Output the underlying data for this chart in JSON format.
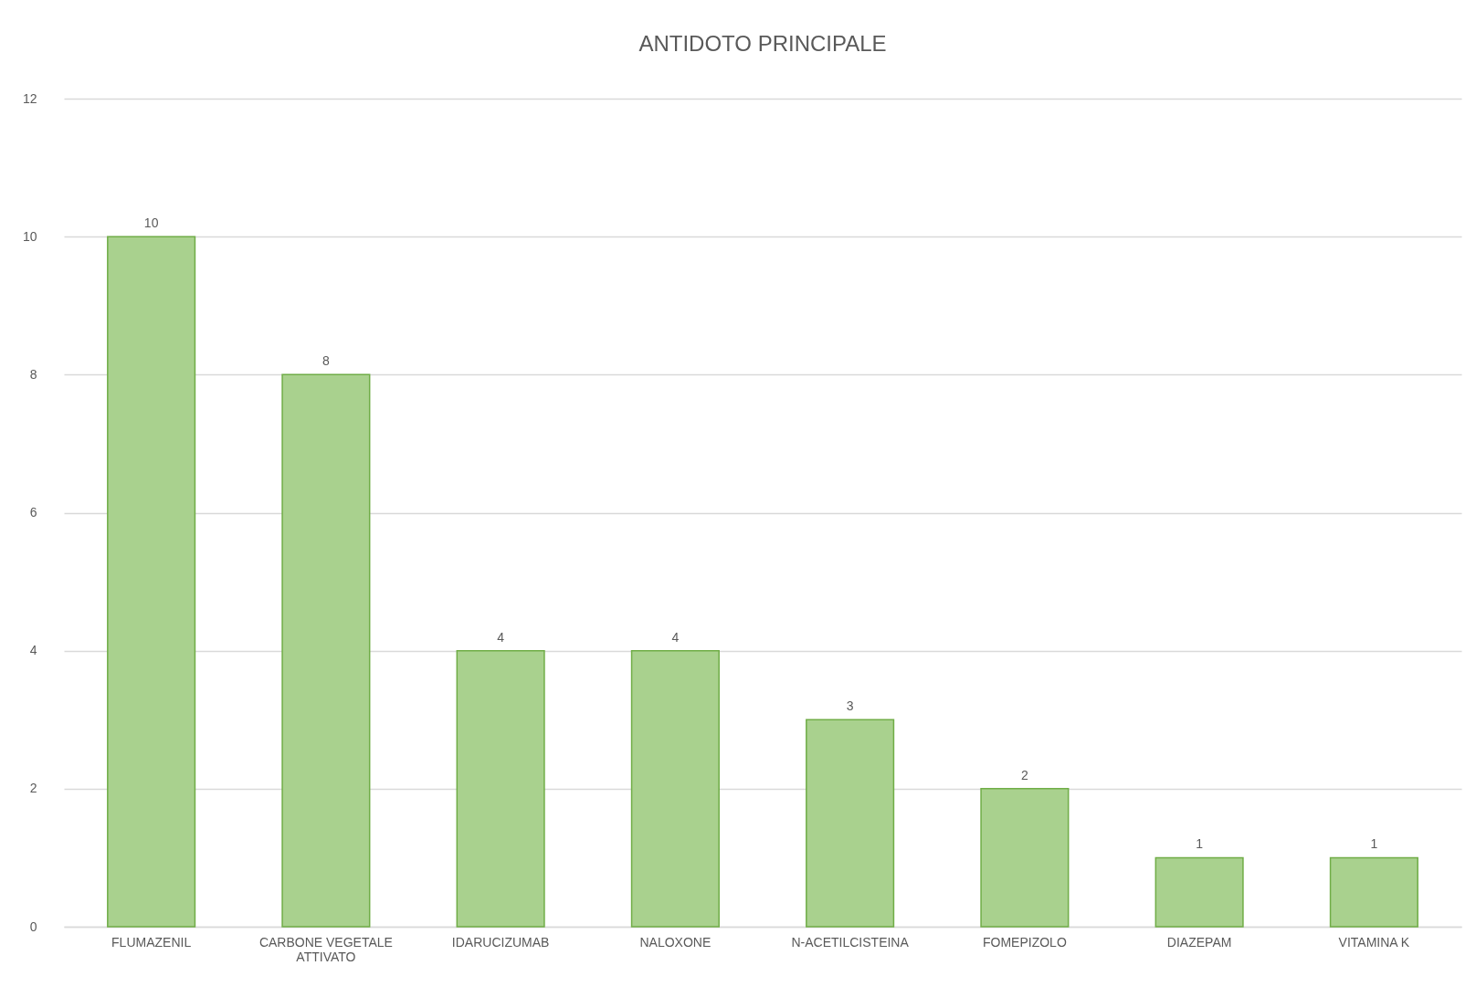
{
  "chart_data": {
    "type": "bar",
    "title": "ANTIDOTO  PRINCIPALE",
    "categories": [
      "FLUMAZENIL",
      "CARBONE VEGETALE ATTIVATO",
      "IDARUCIZUMAB",
      "NALOXONE",
      "N-ACETILCISTEINA",
      "FOMEPIZOLO",
      "DIAZEPAM",
      "VITAMINA K"
    ],
    "values": [
      10,
      8,
      4,
      4,
      3,
      2,
      1,
      1
    ],
    "color": "#a9d18e",
    "ylim": [
      0,
      12
    ],
    "yticks": [
      0,
      2,
      4,
      6,
      8,
      10,
      12
    ],
    "grid": "y",
    "data_labels": true
  }
}
